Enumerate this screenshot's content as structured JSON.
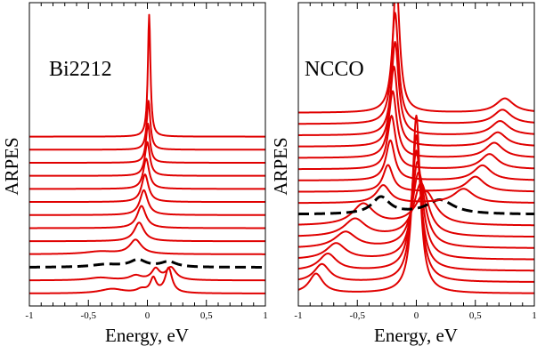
{
  "chart_data": [
    {
      "type": "line",
      "panel_label": "Bi2212",
      "xlabel": "Energy, eV",
      "ylabel": "ARPES",
      "xlim": [
        -1,
        1
      ],
      "xticks": [
        -1,
        -0.5,
        0,
        0.5,
        1
      ],
      "xtick_labels": [
        "-1",
        "-0,5",
        "0",
        "0,5",
        "1"
      ],
      "grid": false,
      "line_color": "#e00000",
      "dashed_color": "#000000",
      "series": [
        {
          "offset": 0,
          "style": "solid",
          "peaks": [
            [
              0.18,
              28,
              0.035
            ],
            [
              0.05,
              16,
              0.03
            ],
            [
              -0.05,
              4,
              0.05
            ],
            [
              -0.3,
              5,
              0.12
            ]
          ]
        },
        {
          "offset": 1,
          "style": "solid",
          "peaks": [
            [
              0.2,
              14,
              0.05
            ],
            [
              0.07,
              12,
              0.04
            ],
            [
              -0.1,
              5,
              0.06
            ],
            [
              -0.4,
              3,
              0.12
            ]
          ]
        },
        {
          "offset": 2,
          "style": "dashed",
          "peaks": [
            [
              0.18,
              6,
              0.08
            ],
            [
              -0.08,
              8,
              0.08
            ],
            [
              -0.35,
              3,
              0.15
            ]
          ]
        },
        {
          "offset": 3,
          "style": "solid",
          "peaks": [
            [
              -0.1,
              16,
              0.06
            ],
            [
              -0.4,
              3,
              0.15
            ]
          ]
        },
        {
          "offset": 4,
          "style": "solid",
          "peaks": [
            [
              -0.07,
              21,
              0.05
            ]
          ]
        },
        {
          "offset": 5,
          "style": "solid",
          "peaks": [
            [
              -0.05,
              25,
              0.045
            ]
          ]
        },
        {
          "offset": 6,
          "style": "solid",
          "peaks": [
            [
              -0.03,
              28,
              0.04
            ]
          ]
        },
        {
          "offset": 7,
          "style": "solid",
          "peaks": [
            [
              -0.02,
              31,
              0.035
            ]
          ]
        },
        {
          "offset": 8,
          "style": "solid",
          "peaks": [
            [
              -0.01,
              34,
              0.03
            ]
          ]
        },
        {
          "offset": 9,
          "style": "solid",
          "peaks": [
            [
              0.0,
              38,
              0.025
            ]
          ]
        },
        {
          "offset": 10,
          "style": "solid",
          "peaks": [
            [
              0.005,
              44,
              0.02
            ]
          ]
        },
        {
          "offset": 11,
          "style": "solid",
          "peaks": [
            [
              0.01,
              55,
              0.018
            ]
          ]
        },
        {
          "offset": 12,
          "style": "solid",
          "peaks": [
            [
              0.015,
              137,
              0.013
            ]
          ]
        }
      ]
    },
    {
      "type": "line",
      "panel_label": "NCCO",
      "xlabel": "Energy, eV",
      "ylabel": "ARPES",
      "xlim": [
        -1,
        1
      ],
      "xticks": [
        -1,
        -0.5,
        0,
        0.5,
        1
      ],
      "xtick_labels": [
        "-1",
        "-0,5",
        "0",
        "0,5",
        "1"
      ],
      "grid": false,
      "line_color": "#e00000",
      "dashed_color": "#000000",
      "series": [
        {
          "offset": 0,
          "style": "solid",
          "peaks": [
            [
              -0.85,
              22,
              0.07
            ],
            [
              0.0,
              200,
              0.04
            ]
          ]
        },
        {
          "offset": 1,
          "style": "solid",
          "peaks": [
            [
              -0.8,
              20,
              0.08
            ],
            [
              0.0,
              165,
              0.045
            ]
          ]
        },
        {
          "offset": 2,
          "style": "solid",
          "peaks": [
            [
              -0.75,
              19,
              0.09
            ],
            [
              0.0,
              135,
              0.05
            ]
          ]
        },
        {
          "offset": 3,
          "style": "solid",
          "peaks": [
            [
              -0.68,
              18,
              0.1
            ],
            [
              0.01,
              110,
              0.055
            ]
          ]
        },
        {
          "offset": 4,
          "style": "solid",
          "peaks": [
            [
              -0.6,
              18,
              0.11
            ],
            [
              0.02,
              85,
              0.065
            ]
          ]
        },
        {
          "offset": 5,
          "style": "solid",
          "peaks": [
            [
              -0.52,
              20,
              0.11
            ],
            [
              0.04,
              60,
              0.075
            ]
          ]
        },
        {
          "offset": 6,
          "style": "solid",
          "peaks": [
            [
              -0.45,
              24,
              0.11
            ],
            [
              0.08,
              38,
              0.1
            ]
          ]
        },
        {
          "offset": 7,
          "style": "dashed",
          "peaks": [
            [
              -0.3,
              19,
              0.09
            ],
            [
              0.2,
              16,
              0.14
            ]
          ]
        },
        {
          "offset": 8,
          "style": "solid",
          "peaks": [
            [
              -0.28,
              20,
              0.07
            ],
            [
              0.4,
              16,
              0.1
            ]
          ]
        },
        {
          "offset": 9,
          "style": "solid",
          "peaks": [
            [
              -0.24,
              30,
              0.05
            ],
            [
              0.5,
              17,
              0.09
            ]
          ]
        },
        {
          "offset": 10,
          "style": "solid",
          "peaks": [
            [
              -0.22,
              45,
              0.045
            ],
            [
              0.56,
              17,
              0.09
            ]
          ]
        },
        {
          "offset": 11,
          "style": "solid",
          "peaks": [
            [
              -0.21,
              60,
              0.042
            ],
            [
              0.62,
              17,
              0.09
            ]
          ]
        },
        {
          "offset": 12,
          "style": "solid",
          "peaks": [
            [
              -0.2,
              75,
              0.04
            ],
            [
              0.66,
              17,
              0.09
            ]
          ]
        },
        {
          "offset": 13,
          "style": "solid",
          "peaks": [
            [
              -0.19,
              90,
              0.038
            ],
            [
              0.69,
              16,
              0.09
            ]
          ]
        },
        {
          "offset": 14,
          "style": "solid",
          "peaks": [
            [
              -0.18,
              105,
              0.036
            ],
            [
              0.71,
              16,
              0.09
            ]
          ]
        },
        {
          "offset": 15,
          "style": "solid",
          "peaks": [
            [
              -0.18,
              125,
              0.035
            ],
            [
              0.73,
              16,
              0.09
            ]
          ]
        },
        {
          "offset": 16,
          "style": "solid",
          "peaks": [
            [
              -0.17,
              150,
              0.034
            ],
            [
              0.75,
              16,
              0.09
            ]
          ]
        }
      ]
    }
  ]
}
